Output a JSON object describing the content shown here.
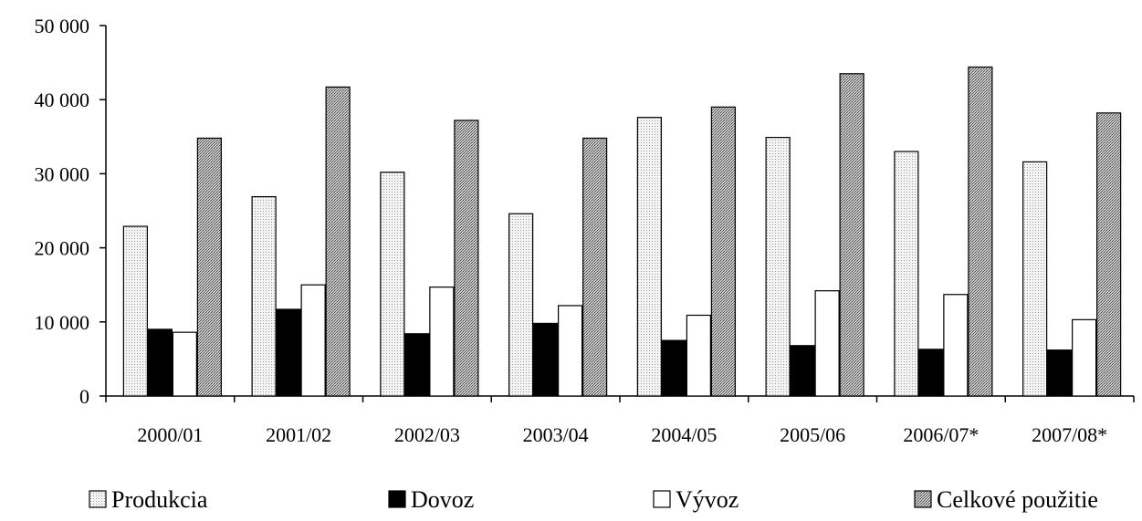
{
  "chart_data": {
    "type": "bar",
    "title": "",
    "xlabel": "",
    "ylabel": "",
    "categories": [
      "2000/01",
      "2001/02",
      "2002/03",
      "2003/04",
      "2004/05",
      "2005/06",
      "2006/07*",
      "2007/08*"
    ],
    "series": [
      {
        "name": "Produkcia",
        "values": [
          22900,
          26900,
          30200,
          24600,
          37600,
          34900,
          33000,
          31600
        ],
        "fill": "#f2f2f2",
        "pattern": "fine-dots"
      },
      {
        "name": "Dovoz",
        "values": [
          9000,
          11700,
          8400,
          9800,
          7500,
          6800,
          6300,
          6200
        ],
        "fill": "#000000",
        "pattern": "solid"
      },
      {
        "name": "Vývoz",
        "values": [
          8600,
          15000,
          14700,
          12200,
          10900,
          14200,
          13700,
          10300
        ],
        "fill": "#ffffff",
        "pattern": "solid"
      },
      {
        "name": "Celkové použitie",
        "values": [
          34800,
          41700,
          37200,
          34800,
          39000,
          43500,
          44400,
          38200
        ],
        "fill": "#bfbfbf",
        "pattern": "dark-dots"
      }
    ],
    "ylim": [
      0,
      50000
    ],
    "yticks": [
      0,
      10000,
      20000,
      30000,
      40000,
      50000
    ],
    "ytick_labels": [
      "0",
      "10 000",
      "20 000",
      "30 000",
      "40 000",
      "50 000"
    ],
    "grid": false,
    "legend_position": "bottom"
  }
}
